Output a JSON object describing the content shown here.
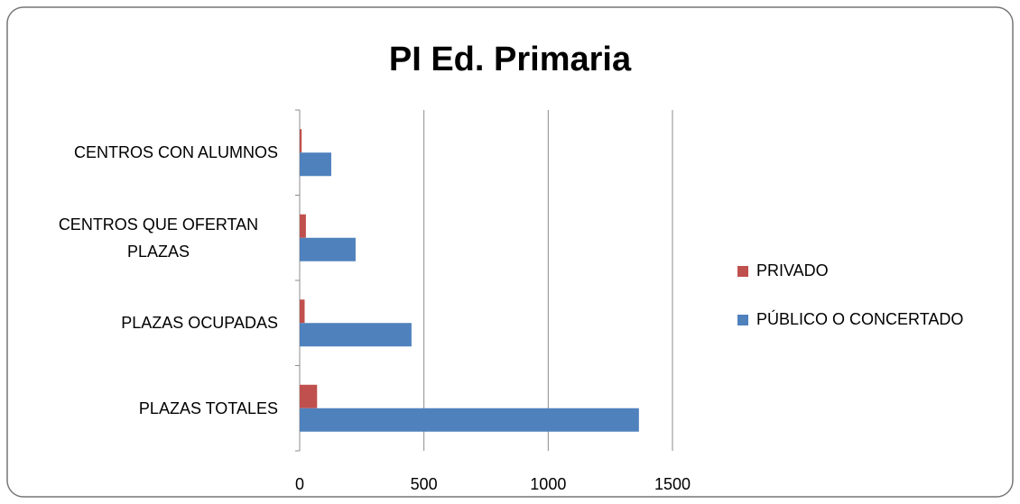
{
  "chart_data": {
    "type": "barh",
    "title": "PI Ed. Primaria",
    "categories": [
      "CENTROS CON ALUMNOS",
      "CENTROS QUE OFERTAN PLAZAS",
      "PLAZAS OCUPADAS",
      "PLAZAS TOTALES"
    ],
    "series": [
      {
        "name": "PRIVADO",
        "color": "#c0504d",
        "values": [
          8,
          25,
          20,
          70
        ]
      },
      {
        "name": "PÚBLICO O CONCERTADO",
        "color": "#4f81bd",
        "values": [
          127,
          225,
          450,
          1365
        ]
      }
    ],
    "xlim": [
      0,
      1500
    ],
    "xticks": [
      0,
      500,
      1000,
      1500
    ],
    "grid": true,
    "legend": "right"
  }
}
